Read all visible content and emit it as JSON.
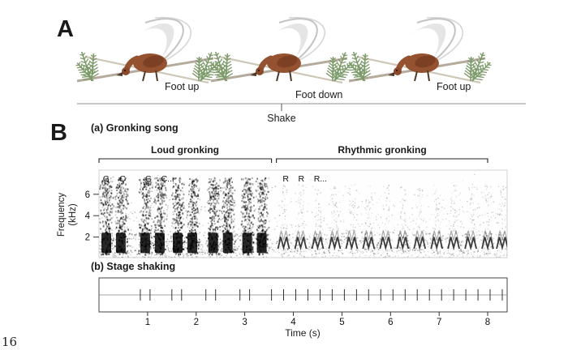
{
  "page_number": "16",
  "panelA": {
    "label": "A",
    "poses": [
      {
        "caption": "Foot up"
      },
      {
        "caption": "Foot down"
      },
      {
        "caption": "Foot up"
      }
    ],
    "shake_label": "Shake"
  },
  "panelB": {
    "label": "B",
    "subpanel_a_title": "(a) Gronking song",
    "subpanel_b_title": "(b) Stage shaking",
    "sections": [
      {
        "label": "Loud gronking"
      },
      {
        "label": "Rhythmic gronking"
      }
    ],
    "y_axis": {
      "line1": "Frequency",
      "line2": "(kHz)",
      "ticks": [
        6,
        4,
        2
      ]
    },
    "x_axis": {
      "label": "Time (s)",
      "ticks": [
        1,
        2,
        3,
        4,
        5,
        6,
        7,
        8
      ]
    },
    "annotations": [
      {
        "text": "G",
        "t": 0.08
      },
      {
        "text": "C",
        "t": 0.42
      },
      {
        "text": "G",
        "t": 0.95
      },
      {
        "text": "C...",
        "t": 1.28
      },
      {
        "text": "R",
        "t": 3.78
      },
      {
        "text": "R",
        "t": 4.1
      },
      {
        "text": "R...",
        "t": 4.42
      }
    ]
  },
  "chart_data": {
    "type": "spectrogram",
    "title": "(a) Gronking song",
    "xlabel": "Time (s)",
    "ylabel": "Frequency (kHz)",
    "x_range_s": [
      0,
      8.4
    ],
    "y_ticks_khz": [
      6,
      4,
      2
    ],
    "sections": [
      {
        "label": "Loud gronking",
        "start_s": 0.0,
        "end_s": 3.55
      },
      {
        "label": "Rhythmic gronking",
        "start_s": 3.65,
        "end_s": 8.0
      }
    ],
    "loud_gronk_syllable_times_s": [
      0.15,
      0.45,
      0.95,
      1.25,
      1.62,
      1.92,
      2.35,
      2.65,
      3.05,
      3.35
    ],
    "rhythmic_gronk_note_times_s": [
      3.8,
      4.15,
      4.5,
      4.85,
      5.2,
      5.55,
      5.9,
      6.25,
      6.6,
      6.95,
      7.3,
      7.65,
      8.0,
      8.3
    ],
    "stage_shake_times_s": [
      0.85,
      1.05,
      1.5,
      1.7,
      2.2,
      2.4,
      2.9,
      3.1,
      3.55,
      3.8,
      4.05,
      4.3,
      4.55,
      4.8,
      5.05,
      5.3,
      5.55,
      5.8,
      6.05,
      6.3,
      6.55,
      6.8,
      7.05,
      7.3,
      7.55,
      7.8,
      8.05,
      8.3
    ]
  }
}
